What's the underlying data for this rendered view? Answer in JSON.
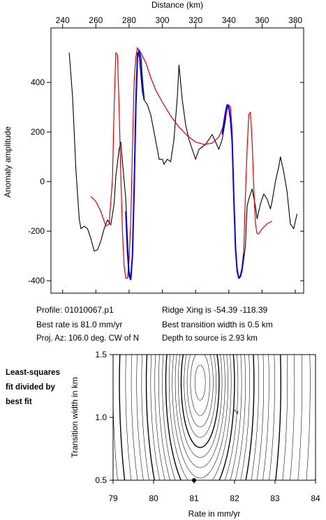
{
  "chart_data": [
    {
      "type": "line",
      "xlabel": "Distance (km)",
      "ylabel": "Anomaly amplitude",
      "xlim": [
        233,
        385
      ],
      "ylim": [
        -450,
        620
      ],
      "xticks": [
        240,
        260,
        280,
        300,
        320,
        340,
        360,
        380
      ],
      "yticks": [
        -400,
        -200,
        0,
        200,
        400
      ],
      "x_axis_position": "top",
      "grid": false,
      "series": [
        {
          "role": "observed",
          "color": "#000000",
          "points": [
            [
              244,
              520
            ],
            [
              246,
              340
            ],
            [
              248,
              50
            ],
            [
              250,
              -150
            ],
            [
              251,
              -190
            ],
            [
              253,
              -180
            ],
            [
              255,
              -190
            ],
            [
              257,
              -230
            ],
            [
              259,
              -280
            ],
            [
              261,
              -275
            ],
            [
              263,
              -240
            ],
            [
              265,
              -190
            ],
            [
              267,
              -155
            ],
            [
              269,
              -175
            ],
            [
              271,
              -90
            ],
            [
              272,
              20
            ],
            [
              274,
              130
            ],
            [
              275,
              160
            ],
            [
              276,
              80
            ],
            [
              278,
              -70
            ],
            [
              279,
              -230
            ],
            [
              280,
              -360
            ],
            [
              281,
              -390
            ],
            [
              282,
              -300
            ],
            [
              283,
              -50
            ],
            [
              284,
              340
            ],
            [
              285,
              520
            ],
            [
              286,
              510
            ],
            [
              288,
              360
            ],
            [
              289,
              330
            ],
            [
              291,
              310
            ],
            [
              293,
              270
            ],
            [
              295,
              200
            ],
            [
              297,
              130
            ],
            [
              298,
              90
            ],
            [
              300,
              90
            ],
            [
              301,
              70
            ],
            [
              303,
              90
            ],
            [
              305,
              80
            ],
            [
              307,
              170
            ],
            [
              309,
              340
            ],
            [
              310,
              470
            ],
            [
              312,
              330
            ],
            [
              314,
              230
            ],
            [
              316,
              170
            ],
            [
              318,
              130
            ],
            [
              320,
              90
            ],
            [
              322,
              130
            ],
            [
              324,
              140
            ],
            [
              326,
              150
            ],
            [
              328,
              170
            ],
            [
              330,
              190
            ],
            [
              332,
              160
            ],
            [
              334,
              130
            ],
            [
              336,
              170
            ],
            [
              338,
              250
            ],
            [
              339,
              300
            ],
            [
              340,
              300
            ],
            [
              341,
              260
            ],
            [
              342,
              170
            ],
            [
              343,
              -60
            ],
            [
              344,
              -260
            ],
            [
              345,
              -350
            ],
            [
              346,
              -385
            ],
            [
              347,
              -385
            ],
            [
              348,
              -360
            ],
            [
              349,
              -310
            ],
            [
              350,
              -260
            ],
            [
              351,
              -100
            ],
            [
              352,
              -70
            ],
            [
              354,
              -30
            ],
            [
              356,
              -100
            ],
            [
              357,
              -150
            ],
            [
              359,
              -90
            ],
            [
              361,
              -50
            ],
            [
              363,
              -70
            ],
            [
              365,
              -110
            ],
            [
              366,
              -80
            ],
            [
              368,
              0
            ],
            [
              370,
              60
            ],
            [
              371,
              100
            ],
            [
              373,
              40
            ],
            [
              375,
              -40
            ],
            [
              377,
              -170
            ],
            [
              379,
              -190
            ],
            [
              381,
              -130
            ]
          ]
        },
        {
          "role": "model",
          "color": "#dd0000",
          "points": [
            [
              257,
              -60
            ],
            [
              260,
              -80
            ],
            [
              263,
              -120
            ],
            [
              266,
              -180
            ],
            [
              268,
              -170
            ],
            [
              270,
              10
            ],
            [
              271,
              300
            ],
            [
              272,
              520
            ],
            [
              273,
              510
            ],
            [
              274,
              300
            ],
            [
              275,
              30
            ],
            [
              276,
              -200
            ],
            [
              277,
              -340
            ],
            [
              278,
              -390
            ],
            [
              279,
              -390
            ],
            [
              280,
              -320
            ],
            [
              281,
              -160
            ],
            [
              282,
              130
            ],
            [
              283,
              400
            ],
            [
              284,
              500
            ],
            [
              285,
              540
            ],
            [
              287,
              520
            ],
            [
              290,
              480
            ],
            [
              293,
              420
            ],
            [
              296,
              370
            ],
            [
              300,
              320
            ],
            [
              305,
              265
            ],
            [
              310,
              220
            ],
            [
              315,
              185
            ],
            [
              320,
              160
            ],
            [
              325,
              150
            ],
            [
              330,
              155
            ],
            [
              334,
              180
            ],
            [
              337,
              230
            ],
            [
              339,
              290
            ],
            [
              340,
              310
            ],
            [
              341,
              300
            ],
            [
              342,
              200
            ],
            [
              343,
              -60
            ],
            [
              344,
              -260
            ],
            [
              345,
              -360
            ],
            [
              346,
              -390
            ],
            [
              347,
              -385
            ],
            [
              348,
              -360
            ],
            [
              349,
              -270
            ],
            [
              350,
              -50
            ],
            [
              351,
              130
            ],
            [
              352,
              270
            ],
            [
              353,
              280
            ],
            [
              354,
              160
            ],
            [
              355,
              -30
            ],
            [
              356,
              -170
            ],
            [
              357,
              -210
            ],
            [
              358,
              -210
            ],
            [
              360,
              -190
            ],
            [
              363,
              -170
            ],
            [
              366,
              -160
            ]
          ]
        },
        {
          "role": "best-fit segments",
          "color": "#0000ff",
          "segments": [
            [
              [
                278,
                -120
              ],
              [
                279,
                -280
              ],
              [
                280,
                -380
              ],
              [
                281,
                -395
              ],
              [
                282,
                -300
              ],
              [
                283,
                -40
              ],
              [
                284,
                290
              ],
              [
                285,
                500
              ],
              [
                286,
                530
              ],
              [
                287,
                500
              ],
              [
                288,
                400
              ],
              [
                289,
                330
              ]
            ],
            [
              [
                336,
                190
              ],
              [
                337,
                240
              ],
              [
                338,
                280
              ],
              [
                339,
                310
              ],
              [
                340,
                300
              ],
              [
                341,
                250
              ],
              [
                342,
                160
              ],
              [
                343,
                -70
              ],
              [
                344,
                -270
              ],
              [
                345,
                -360
              ],
              [
                346,
                -390
              ],
              [
                347,
                -380
              ],
              [
                348,
                -350
              ],
              [
                349,
                -290
              ]
            ]
          ]
        }
      ]
    },
    {
      "type": "contour",
      "xlabel": "Rate in mm/yr",
      "ylabel": "Transition width in km",
      "xlim": [
        79,
        84
      ],
      "ylim": [
        0.5,
        1.5
      ],
      "xticks": [
        79,
        80,
        81,
        82,
        83,
        84
      ],
      "yticks": [
        0.5,
        1.0,
        1.5
      ],
      "contour_label": "2",
      "best_fit": {
        "rate": 81.0,
        "width": 0.5
      }
    }
  ],
  "info": {
    "profile": "Profile: 01010067.p1",
    "best_rate": "Best rate is 81.0 mm/yr",
    "proj_az": "Proj. Az: 106.0 deg. CW of N",
    "ridge_xing": "Ridge Xing is -54.39 -118.39",
    "transition": "Best transition width is 0.5 km",
    "depth": "Depth to source is   2.93 km"
  },
  "side_caption": [
    "Least-squares",
    "fit divided by",
    "best fit"
  ]
}
